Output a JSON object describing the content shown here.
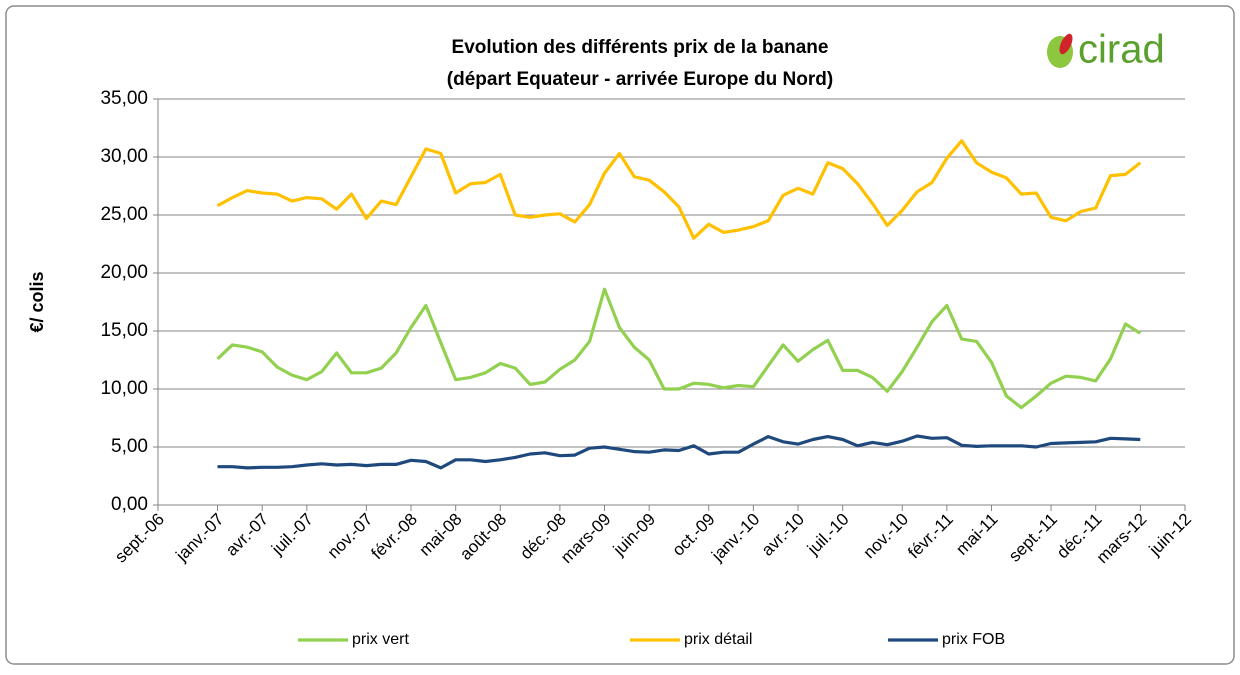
{
  "chart_data": {
    "type": "line",
    "title": "Evolution des différents prix de la banane",
    "subtitle": "(départ Equateur - arrivée Europe du Nord)",
    "logo": "cirad",
    "y_label": "€/ colis",
    "x": [
      "2007-01",
      "2007-02",
      "2007-03",
      "2007-04",
      "2007-05",
      "2007-06",
      "2007-07",
      "2007-08",
      "2007-09",
      "2007-10",
      "2007-11",
      "2007-12",
      "2008-01",
      "2008-02",
      "2008-03",
      "2008-04",
      "2008-05",
      "2008-06",
      "2008-07",
      "2008-08",
      "2008-09",
      "2008-10",
      "2008-11",
      "2008-12",
      "2009-01",
      "2009-02",
      "2009-03",
      "2009-04",
      "2009-05",
      "2009-06",
      "2009-07",
      "2009-08",
      "2009-09",
      "2009-10",
      "2009-11",
      "2009-12",
      "2010-01",
      "2010-02",
      "2010-03",
      "2010-04",
      "2010-05",
      "2010-06",
      "2010-07",
      "2010-08",
      "2010-09",
      "2010-10",
      "2010-11",
      "2010-12",
      "2011-01",
      "2011-02",
      "2011-03",
      "2011-04",
      "2011-05",
      "2011-06",
      "2011-07",
      "2011-08",
      "2011-09",
      "2011-10",
      "2011-11",
      "2011-12",
      "2012-01",
      "2012-02",
      "2012-03"
    ],
    "series": [
      {
        "name": "prix vert",
        "color": "#92d050",
        "values": [
          12.6,
          13.8,
          13.6,
          13.2,
          11.9,
          11.2,
          10.8,
          11.5,
          13.1,
          11.4,
          11.4,
          11.8,
          13.1,
          15.3,
          17.2,
          14.0,
          10.8,
          11.0,
          11.4,
          12.2,
          11.8,
          10.4,
          10.6,
          11.7,
          12.5,
          14.1,
          18.6,
          15.3,
          13.6,
          12.5,
          10.0,
          10.0,
          10.5,
          10.4,
          10.1,
          10.3,
          10.2,
          12.0,
          13.8,
          12.4,
          13.4,
          14.2,
          11.6,
          11.6,
          11.0,
          9.8,
          11.5,
          13.6,
          15.8,
          17.2,
          14.3,
          14.1,
          12.3,
          9.4,
          8.4,
          9.4,
          10.5,
          11.1,
          11.0,
          10.7,
          12.6,
          15.6,
          14.8
        ]
      },
      {
        "name": "prix détail",
        "color": "#ffc000",
        "values": [
          25.8,
          26.5,
          27.1,
          26.9,
          26.8,
          26.2,
          26.5,
          26.4,
          25.5,
          26.8,
          24.7,
          26.2,
          25.9,
          28.3,
          30.7,
          30.3,
          26.9,
          27.7,
          27.8,
          28.5,
          25.0,
          24.8,
          25.0,
          25.1,
          24.4,
          25.9,
          28.6,
          30.3,
          28.3,
          28.0,
          27.0,
          25.7,
          23.0,
          24.2,
          23.5,
          23.7,
          24.0,
          24.5,
          26.7,
          27.3,
          26.8,
          29.5,
          29.0,
          27.7,
          26.0,
          24.1,
          25.4,
          27.0,
          27.8,
          29.9,
          31.4,
          29.5,
          28.7,
          28.2,
          26.8,
          26.9,
          24.8,
          24.5,
          25.3,
          25.6,
          28.4,
          28.5,
          29.5
        ]
      },
      {
        "name": "prix FOB",
        "color": "#1f497d",
        "values": [
          3.3,
          3.3,
          3.2,
          3.25,
          3.25,
          3.3,
          3.45,
          3.55,
          3.45,
          3.5,
          3.4,
          3.5,
          3.5,
          3.85,
          3.75,
          3.2,
          3.9,
          3.9,
          3.75,
          3.9,
          4.1,
          4.4,
          4.5,
          4.25,
          4.3,
          4.9,
          5.0,
          4.8,
          4.6,
          4.55,
          4.75,
          4.7,
          5.1,
          4.4,
          4.55,
          4.55,
          5.25,
          5.9,
          5.45,
          5.25,
          5.65,
          5.9,
          5.65,
          5.1,
          5.4,
          5.2,
          5.5,
          5.95,
          5.75,
          5.8,
          5.15,
          5.05,
          5.1,
          5.1,
          5.1,
          5.0,
          5.3,
          5.35,
          5.4,
          5.45,
          5.75,
          5.7,
          5.65
        ]
      }
    ],
    "xlim": [
      "2006-09",
      "2012-06"
    ],
    "xticks": [
      {
        "value": "2006-09",
        "label": "sept.-06"
      },
      {
        "value": "2007-01",
        "label": "janv.-07"
      },
      {
        "value": "2007-04",
        "label": "avr.-07"
      },
      {
        "value": "2007-07",
        "label": "juil.-07"
      },
      {
        "value": "2007-11",
        "label": "nov.-07"
      },
      {
        "value": "2008-02",
        "label": "févr.-08"
      },
      {
        "value": "2008-05",
        "label": "mai-08"
      },
      {
        "value": "2008-08",
        "label": "août-08"
      },
      {
        "value": "2008-12",
        "label": "déc.-08"
      },
      {
        "value": "2009-03",
        "label": "mars-09"
      },
      {
        "value": "2009-06",
        "label": "juin-09"
      },
      {
        "value": "2009-10",
        "label": "oct.-09"
      },
      {
        "value": "2010-01",
        "label": "janv.-10"
      },
      {
        "value": "2010-04",
        "label": "avr.-10"
      },
      {
        "value": "2010-07",
        "label": "juil.-10"
      },
      {
        "value": "2010-11",
        "label": "nov.-10"
      },
      {
        "value": "2011-02",
        "label": "févr.-11"
      },
      {
        "value": "2011-05",
        "label": "mai-11"
      },
      {
        "value": "2011-09",
        "label": "sept.-11"
      },
      {
        "value": "2011-12",
        "label": "déc.-11"
      },
      {
        "value": "2012-03",
        "label": "mars-12"
      },
      {
        "value": "2012-06",
        "label": "juin-12"
      }
    ],
    "ylim": [
      0,
      35
    ],
    "yticks": [
      {
        "value": 0,
        "label": "0,00"
      },
      {
        "value": 5,
        "label": "5,00"
      },
      {
        "value": 10,
        "label": "10,00"
      },
      {
        "value": 15,
        "label": "15,00"
      },
      {
        "value": 20,
        "label": "20,00"
      },
      {
        "value": 25,
        "label": "25,00"
      },
      {
        "value": 30,
        "label": "30,00"
      },
      {
        "value": 35,
        "label": "35,00"
      }
    ],
    "grid": true,
    "legend": "bottom"
  }
}
